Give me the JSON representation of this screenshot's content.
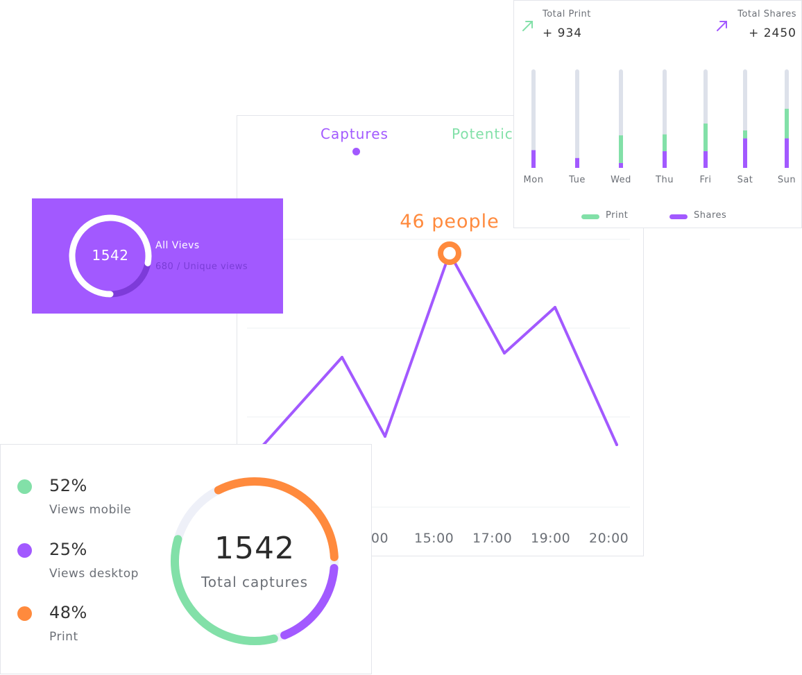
{
  "colors": {
    "purple": "#a259ff",
    "green": "#82e0a8",
    "orange": "#ff8a3d",
    "track": "#eef0f8",
    "bar_track": "#dde1ea"
  },
  "line_chart": {
    "tabs": [
      {
        "label": "Captures",
        "color": "#a259ff",
        "active": true
      },
      {
        "label": "Potentic",
        "color": "#82e0a8",
        "active": false
      }
    ],
    "annotation": "46 people",
    "x_tick_labels": [
      ":00",
      "15:00",
      "17:00",
      "19:00",
      "20:00"
    ]
  },
  "views": {
    "number": "1542",
    "title": "All Vievs",
    "subtitle": "680 / Unique views",
    "ring_fraction": 0.78
  },
  "weekly": {
    "print_label": "Total Print",
    "print_value": "+ 934",
    "shares_label": "Total Shares",
    "shares_value": "+ 2450",
    "legend": [
      {
        "label": "Print",
        "color": "#82e0a8"
      },
      {
        "label": "Shares",
        "color": "#a259ff"
      }
    ]
  },
  "captures": {
    "total": "1542",
    "total_label": "Total captures",
    "legend": [
      {
        "pct": "52%",
        "label": "Views mobile",
        "color": "#82e0a8"
      },
      {
        "pct": "25%",
        "label": "Views desktop",
        "color": "#a259ff"
      },
      {
        "pct": "48%",
        "label": "Print",
        "color": "#ff8a3d"
      }
    ]
  },
  "chart_data": [
    {
      "type": "line",
      "series": [
        {
          "name": "Captures",
          "values": [
            0,
            21,
            2,
            46,
            22,
            33,
            0
          ]
        }
      ],
      "x": [
        "",
        "",
        "",
        "15:00",
        "",
        "19:00",
        "20:00"
      ],
      "x_tick_labels": [
        ":00",
        "15:00",
        "17:00",
        "19:00",
        "20:00"
      ],
      "ylim": [
        -15,
        60
      ],
      "annotation": {
        "x_index": 3,
        "value": 46,
        "label": "46 people"
      },
      "grid": true
    },
    {
      "type": "bar",
      "stacked": true,
      "categories": [
        "Mon",
        "Tue",
        "Wed",
        "Thu",
        "Fri",
        "Sat",
        "Sun"
      ],
      "series": [
        {
          "name": "Shares",
          "values": [
            18,
            10,
            5,
            17,
            17,
            30,
            30
          ]
        },
        {
          "name": "Print",
          "values": [
            0,
            0,
            28,
            17,
            28,
            8,
            30
          ]
        }
      ],
      "ylim": [
        0,
        100
      ],
      "legend_position": "bottom"
    },
    {
      "type": "pie",
      "donut": true,
      "categories": [
        "Views mobile",
        "Views desktop",
        "Print"
      ],
      "values": [
        52,
        25,
        48
      ],
      "center_value": "1542",
      "center_label": "Total captures"
    }
  ]
}
